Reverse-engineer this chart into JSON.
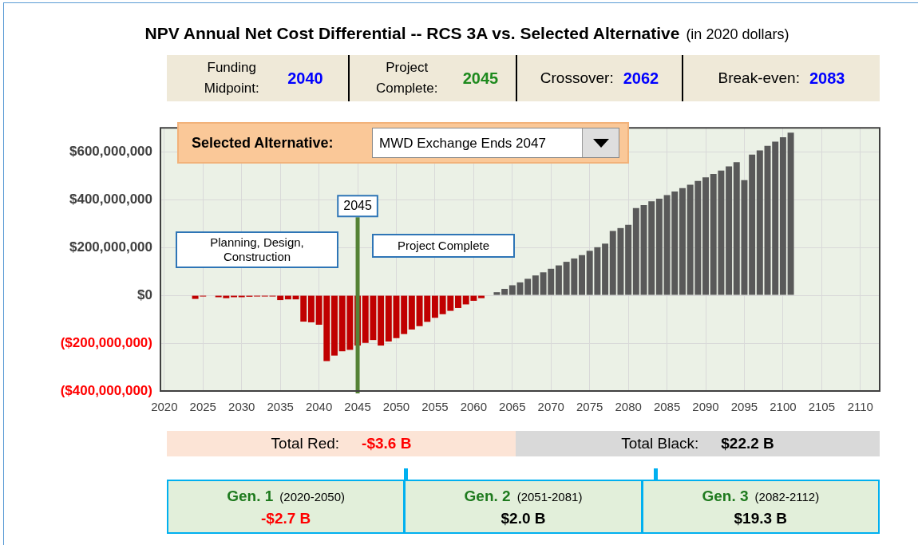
{
  "chart_data": {
    "type": "bar",
    "title": "NPV Annual Net Cost Differential -- RCS 3A vs. Selected Alternative",
    "subtitle": "(in 2020 dollars)",
    "categories": [
      "2020",
      null,
      null,
      null,
      null,
      "2025",
      null,
      null,
      null,
      null,
      "2030",
      null,
      null,
      null,
      null,
      "2035",
      null,
      null,
      null,
      null,
      "2040",
      null,
      null,
      null,
      null,
      "2045",
      null,
      null,
      null,
      null,
      "2050",
      null,
      null,
      null,
      null,
      "2055",
      null,
      null,
      null,
      null,
      "2060",
      null,
      null,
      null,
      null,
      "2065",
      null,
      null,
      null,
      null,
      "2070",
      null,
      null,
      null,
      null,
      "2075",
      null,
      null,
      null,
      null,
      "2080",
      null,
      null,
      null,
      null,
      "2085",
      null,
      null,
      null,
      null,
      "2090",
      null,
      null,
      null,
      null,
      "2095",
      null,
      null,
      null,
      null,
      "2100",
      null,
      null,
      null,
      null,
      "2105",
      null,
      null,
      null,
      null,
      "2110",
      null,
      null
    ],
    "values": [
      null,
      null,
      null,
      null,
      -15000000,
      -5000000,
      null,
      -8000000,
      -12000000,
      -8000000,
      -8000000,
      -6000000,
      -5000000,
      -5000000,
      -5000000,
      -20000000,
      -17000000,
      -17000000,
      -110000000,
      -113000000,
      -123000000,
      -275000000,
      -252000000,
      -234000000,
      -228000000,
      -210000000,
      -199000000,
      -187000000,
      -210000000,
      -193000000,
      -179000000,
      -162000000,
      -143000000,
      -129000000,
      -111000000,
      -94000000,
      -79000000,
      -65000000,
      -53000000,
      -38000000,
      -23000000,
      -12000000,
      0,
      13000000,
      27000000,
      42000000,
      54000000,
      69000000,
      83000000,
      96000000,
      111000000,
      125000000,
      140000000,
      154000000,
      168000000,
      186000000,
      201000000,
      216000000,
      269000000,
      281000000,
      295000000,
      365000000,
      377000000,
      393000000,
      404000000,
      419000000,
      434000000,
      448000000,
      462000000,
      478000000,
      493000000,
      507000000,
      521000000,
      539000000,
      556000000,
      481000000,
      588000000,
      606000000,
      625000000,
      642000000,
      661000000,
      680000000,
      null,
      null,
      null,
      null,
      null,
      null,
      null,
      null,
      null,
      null,
      null
    ],
    "colors": [
      "#c00000",
      "#c00000",
      "#c00000",
      "#c00000",
      "#c00000",
      "#c00000",
      "#c00000",
      "#c00000",
      "#c00000",
      "#c00000",
      "#c00000",
      "#c00000",
      "#c00000",
      "#c00000",
      "#c00000",
      "#c00000",
      "#c00000",
      "#c00000",
      "#c00000",
      "#c00000",
      "#c00000",
      "#c00000",
      "#c00000",
      "#c00000",
      "#c00000",
      "#c00000",
      "#c00000",
      "#c00000",
      "#c00000",
      "#c00000",
      "#c00000",
      "#c00000",
      "#c00000",
      "#c00000",
      "#c00000",
      "#c00000",
      "#c00000",
      "#c00000",
      "#c00000",
      "#c00000",
      "#c00000",
      "#c00000",
      "#c00000",
      "#595959",
      "#595959",
      "#595959",
      "#595959",
      "#595959",
      "#595959",
      "#595959",
      "#595959",
      "#595959",
      "#595959",
      "#595959",
      "#595959",
      "#595959",
      "#595959",
      "#595959",
      "#595959",
      "#595959",
      "#595959",
      "#595959",
      "#595959",
      "#595959",
      "#595959",
      "#595959",
      "#595959",
      "#595959",
      "#595959",
      "#595959",
      "#595959",
      "#595959",
      "#595959",
      "#595959",
      "#595959",
      "#595959",
      "#595959",
      "#595959",
      "#595959",
      "#595959",
      "#595959",
      "#595959",
      "#595959",
      "#595959",
      "#595959",
      "#595959",
      "#595959",
      "#595959",
      "#595959",
      "#595959",
      "#595959",
      "#595959",
      "#595959"
    ],
    "ylim": [
      -400000000,
      700000000
    ],
    "yticks": [
      {
        "value": -400000000,
        "label": "($400,000,000)"
      },
      {
        "value": -200000000,
        "label": "($200,000,000)"
      },
      {
        "value": 0,
        "label": "$0"
      },
      {
        "value": 200000000,
        "label": "$200,000,000"
      },
      {
        "value": 400000000,
        "label": "$400,000,000"
      },
      {
        "value": 600000000,
        "label": "$600,000,000"
      }
    ],
    "grid": true,
    "ref_lines": [
      {
        "axis": "x",
        "value": "2045",
        "label": "2045",
        "color": "#548235"
      }
    ],
    "annotations": [
      "Funding Midpoint:",
      "2040",
      "Project Complete:",
      "2045",
      "Crossover:",
      "2062",
      "Break-even:",
      "2083",
      "Selected Alternative:",
      "MWD Exchange Ends 2047",
      "Planning, Design, Construction",
      "Project Complete",
      "Total Red:",
      "-$3.6 B",
      "Total Black:",
      "$22.2 B",
      "Gen. 1",
      "(2020-2050)",
      "-$2.7 B",
      "Gen. 2",
      "(2051-2081)",
      "$2.0 B",
      "Gen. 3",
      "(2082-2112)",
      "$19.3 B"
    ]
  }
}
